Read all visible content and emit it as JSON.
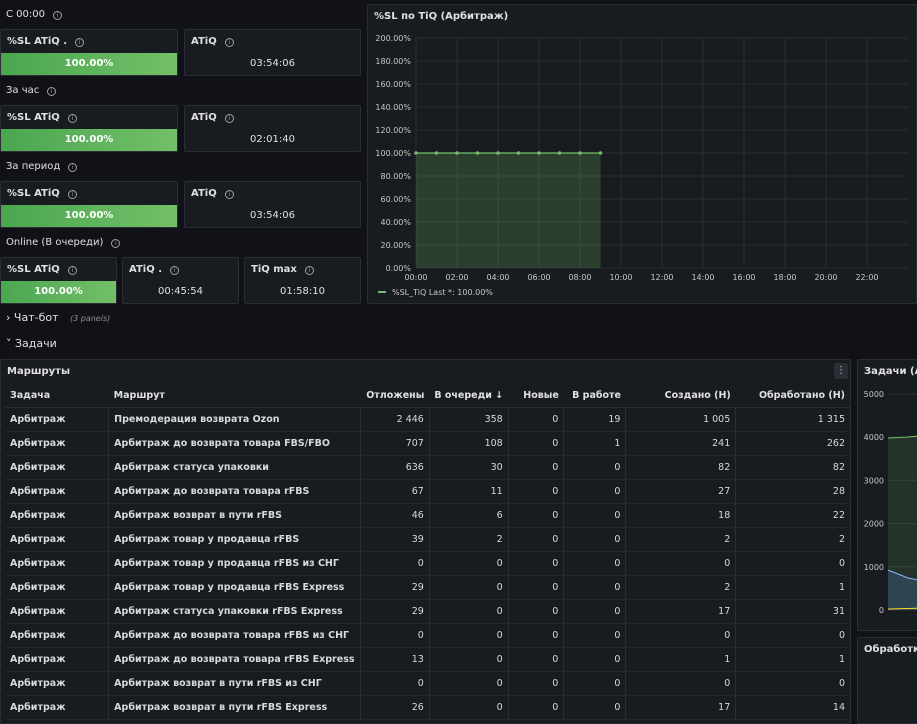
{
  "stats": {
    "section_c0000": "С 00:00",
    "section_hour": "За час",
    "section_period": "За период",
    "section_online": "Online (В очереди)",
    "g1": {
      "sl_title": "%SL ATiQ .",
      "sl_value": "100.00%",
      "atiq_title": "ATiQ",
      "atiq_value": "03:54:06"
    },
    "g2": {
      "sl_title": "%SL ATiQ",
      "sl_value": "100.00%",
      "atiq_title": "ATiQ",
      "atiq_value": "02:01:40"
    },
    "g3": {
      "sl_title": "%SL ATiQ",
      "sl_value": "100.00%",
      "atiq_title": "ATiQ",
      "atiq_value": "03:54:06"
    },
    "g4": {
      "sl_title": "%SL ATiQ",
      "sl_value": "100.00%",
      "atiq_title": "ATiQ .",
      "atiq_value": "00:45:54",
      "tiq_max_title": "TiQ max",
      "tiq_max_value": "01:58:10"
    }
  },
  "chart_data": {
    "type": "area",
    "title": "%SL по TiQ (Арбитраж)",
    "x": [
      "00:00",
      "01:00",
      "02:00",
      "03:00",
      "04:00",
      "05:00",
      "06:00",
      "07:00",
      "08:00",
      "09:00"
    ],
    "series": [
      {
        "name": "%SL_TiQ",
        "values": [
          100,
          100,
          100,
          100,
          100,
          100,
          100,
          100,
          100,
          100
        ],
        "color": "#73bf69"
      }
    ],
    "x_ticks": [
      "00:00",
      "02:00",
      "04:00",
      "06:00",
      "08:00",
      "10:00",
      "12:00",
      "14:00",
      "16:00",
      "18:00",
      "20:00",
      "22:00"
    ],
    "y_ticks": [
      "0.00%",
      "20.00%",
      "40.00%",
      "60.00%",
      "80.00%",
      "100.00%",
      "120.00%",
      "140.00%",
      "160.00%",
      "180.00%",
      "200.00%"
    ],
    "ylim": [
      0,
      200
    ],
    "legend_text": "%SL_TiQ   Last *: 100.00%",
    "grid": true
  },
  "rows": {
    "chatbot_title": "Чат-бот",
    "chatbot_count": "(3 panels)",
    "tasks_title": "Задачи"
  },
  "routes": {
    "title": "Маршруты",
    "columns": [
      "Задача",
      "Маршрут",
      "Отложены",
      "В очереди ↓",
      "Новые",
      "В работе",
      "Создано (Н)",
      "Обработано (Н)"
    ],
    "rows": [
      [
        "Арбитраж",
        "Премодерация возврата Ozon",
        "2 446",
        "358",
        "0",
        "19",
        "1 005",
        "1 315"
      ],
      [
        "Арбитраж",
        "Арбитраж до возврата товара FBS/FBO",
        "707",
        "108",
        "0",
        "1",
        "241",
        "262"
      ],
      [
        "Арбитраж",
        "Арбитраж статуса упаковки",
        "636",
        "30",
        "0",
        "0",
        "82",
        "82"
      ],
      [
        "Арбитраж",
        "Арбитраж до возврата товара rFBS",
        "67",
        "11",
        "0",
        "0",
        "27",
        "28"
      ],
      [
        "Арбитраж",
        "Арбитраж возврат в пути rFBS",
        "46",
        "6",
        "0",
        "0",
        "18",
        "22"
      ],
      [
        "Арбитраж",
        "Арбитраж товар у продавца rFBS",
        "39",
        "2",
        "0",
        "0",
        "2",
        "2"
      ],
      [
        "Арбитраж",
        "Арбитраж товар у продавца rFBS из СНГ",
        "0",
        "0",
        "0",
        "0",
        "0",
        "0"
      ],
      [
        "Арбитраж",
        "Арбитраж товар у продавца rFBS Express",
        "29",
        "0",
        "0",
        "0",
        "2",
        "1"
      ],
      [
        "Арбитраж",
        "Арбитраж статуса упаковки rFBS Express",
        "29",
        "0",
        "0",
        "0",
        "17",
        "31"
      ],
      [
        "Арбитраж",
        "Арбитраж до возврата товара rFBS из СНГ",
        "0",
        "0",
        "0",
        "0",
        "0",
        "0"
      ],
      [
        "Арбитраж",
        "Арбитраж до возврата товара rFBS Express",
        "13",
        "0",
        "0",
        "0",
        "1",
        "1"
      ],
      [
        "Арбитраж",
        "Арбитраж возврат в пути rFBS из СНГ",
        "0",
        "0",
        "0",
        "0",
        "0",
        "0"
      ],
      [
        "Арбитраж",
        "Арбитраж возврат в пути rFBS Express",
        "26",
        "0",
        "0",
        "0",
        "17",
        "14"
      ]
    ]
  },
  "side_chart": {
    "title": "Задачи (Ар",
    "y_ticks": [
      "0",
      "1000",
      "2000",
      "3000",
      "4000",
      "5000"
    ]
  },
  "side_panel2": {
    "title": "Обработка"
  },
  "menu_icon": "⋮"
}
